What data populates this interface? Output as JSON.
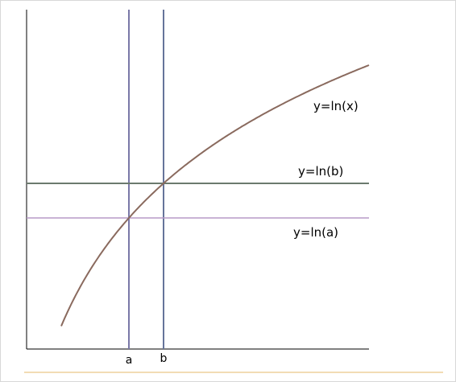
{
  "chart_data": {
    "type": "line",
    "title": "",
    "xlabel": "",
    "ylabel": "",
    "grid": false,
    "curve": {
      "label": "y=ln(x)",
      "color": "#8a6a5e"
    },
    "vertical_lines": [
      {
        "label": "a",
        "color": "#7a78a8"
      },
      {
        "label": "b",
        "color": "#66749a"
      }
    ],
    "horizontal_lines": [
      {
        "label": "y=ln(b)",
        "color": "#6b7a6e"
      },
      {
        "label": "y=ln(a)",
        "color": "#b79ac7"
      }
    ],
    "x_tick_labels": [
      "a",
      "b"
    ]
  },
  "colors": {
    "axis": "#000000",
    "footer_rule": "#f2dcb4"
  }
}
